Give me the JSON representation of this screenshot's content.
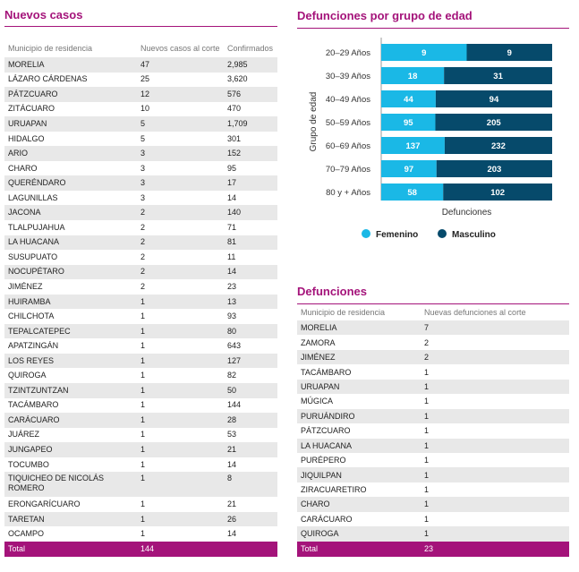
{
  "nuevos_casos": {
    "title": "Nuevos casos",
    "headers": [
      "Municipio de residencia",
      "Nuevos casos al corte",
      "Confirmados"
    ],
    "rows": [
      [
        "MORELIA",
        "47",
        "2,985"
      ],
      [
        "LÁZARO CÁRDENAS",
        "25",
        "3,620"
      ],
      [
        "PÁTZCUARO",
        "12",
        "576"
      ],
      [
        "ZITÁCUARO",
        "10",
        "470"
      ],
      [
        "URUAPAN",
        "5",
        "1,709"
      ],
      [
        "HIDALGO",
        "5",
        "301"
      ],
      [
        "ARIO",
        "3",
        "152"
      ],
      [
        "CHARO",
        "3",
        "95"
      ],
      [
        "QUERÉNDARO",
        "3",
        "17"
      ],
      [
        "LAGUNILLAS",
        "3",
        "14"
      ],
      [
        "JACONA",
        "2",
        "140"
      ],
      [
        "TLALPUJAHUA",
        "2",
        "71"
      ],
      [
        "LA HUACANA",
        "2",
        "81"
      ],
      [
        "SUSUPUATO",
        "2",
        "11"
      ],
      [
        "NOCUPÉTARO",
        "2",
        "14"
      ],
      [
        "JIMÉNEZ",
        "2",
        "23"
      ],
      [
        "HUIRAMBA",
        "1",
        "13"
      ],
      [
        "CHILCHOTA",
        "1",
        "93"
      ],
      [
        "TEPALCATEPEC",
        "1",
        "80"
      ],
      [
        "APATZINGÁN",
        "1",
        "643"
      ],
      [
        "LOS REYES",
        "1",
        "127"
      ],
      [
        "QUIROGA",
        "1",
        "82"
      ],
      [
        "TZINTZUNTZAN",
        "1",
        "50"
      ],
      [
        "TACÁMBARO",
        "1",
        "144"
      ],
      [
        "CARÁCUARO",
        "1",
        "28"
      ],
      [
        "JUÁREZ",
        "1",
        "53"
      ],
      [
        "JUNGAPEO",
        "1",
        "21"
      ],
      [
        "TOCUMBO",
        "1",
        "14"
      ],
      [
        "TIQUICHEO DE NICOLÁS ROMERO",
        "1",
        "8"
      ],
      [
        "ERONGARÍCUARO",
        "1",
        "21"
      ],
      [
        "TARETAN",
        "1",
        "26"
      ],
      [
        "OCAMPO",
        "1",
        "14"
      ]
    ],
    "total_label": "Total",
    "total_value": "144"
  },
  "defunciones": {
    "title": "Defunciones",
    "headers": [
      "Municipio de residencia",
      "Nuevas defunciones al corte"
    ],
    "rows": [
      [
        "MORELIA",
        "7"
      ],
      [
        "ZAMORA",
        "2"
      ],
      [
        "JIMÉNEZ",
        "2"
      ],
      [
        "TACÁMBARO",
        "1"
      ],
      [
        "URUAPAN",
        "1"
      ],
      [
        "MÚGICA",
        "1"
      ],
      [
        "PURUÁNDIRO",
        "1"
      ],
      [
        "PÁTZCUARO",
        "1"
      ],
      [
        "LA HUACANA",
        "1"
      ],
      [
        "PURÉPERO",
        "1"
      ],
      [
        "JIQUILPAN",
        "1"
      ],
      [
        "ZIRACUARETIRO",
        "1"
      ],
      [
        "CHARO",
        "1"
      ],
      [
        "CARÁCUARO",
        "1"
      ],
      [
        "QUIROGA",
        "1"
      ]
    ],
    "total_label": "Total",
    "total_value": "23"
  },
  "chart_data": {
    "type": "bar",
    "orientation": "horizontal",
    "stacked": true,
    "normalized": true,
    "title": "Defunciones por grupo de edad",
    "xlabel": "Defunciones",
    "ylabel": "Grupo de edad",
    "categories": [
      "20–29 Años",
      "30–39 Años",
      "40–49 Años",
      "50–59 Años",
      "60–69 Años",
      "70–79 Años",
      "80 y + Años"
    ],
    "series": [
      {
        "name": "Femenino",
        "color": "#1ab8e6",
        "values": [
          9,
          18,
          44,
          95,
          137,
          97,
          58
        ]
      },
      {
        "name": "Masculino",
        "color": "#064a6b",
        "values": [
          9,
          31,
          94,
          205,
          232,
          203,
          102
        ]
      }
    ],
    "grid": false,
    "legend": "bottom"
  },
  "colors": {
    "accent": "#a4137a",
    "femenino": "#1ab8e6",
    "masculino": "#064a6b",
    "row_stripe": "#e8e8e8"
  }
}
